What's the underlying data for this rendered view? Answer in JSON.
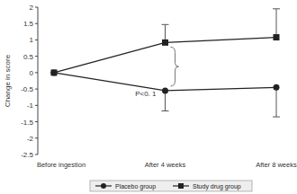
{
  "chart_data": {
    "type": "line",
    "y_label": "Change in score",
    "categories": [
      "Before ingestion",
      "After 4 weeks",
      "After 8 weeks"
    ],
    "series": [
      {
        "name": "Placebo group",
        "color": "#222222",
        "marker": "circle",
        "line_style": "solid",
        "values": [
          0,
          -0.55,
          -0.45
        ],
        "errors": [
          0,
          0.62,
          0.9
        ]
      },
      {
        "name": "Study drug group",
        "color": "#222222",
        "marker": "square",
        "line_style": "solid",
        "values": [
          0,
          0.92,
          1.08
        ],
        "errors": [
          0,
          0.55,
          0.87
        ]
      }
    ],
    "annotation": "P<0. 1",
    "ylim": [
      -2.5,
      2
    ],
    "yticks": [
      -2.5,
      -2,
      -1.5,
      -1,
      -0.5,
      0,
      0.5,
      1,
      1.5,
      2
    ],
    "grid": false,
    "legend": "bottom"
  }
}
